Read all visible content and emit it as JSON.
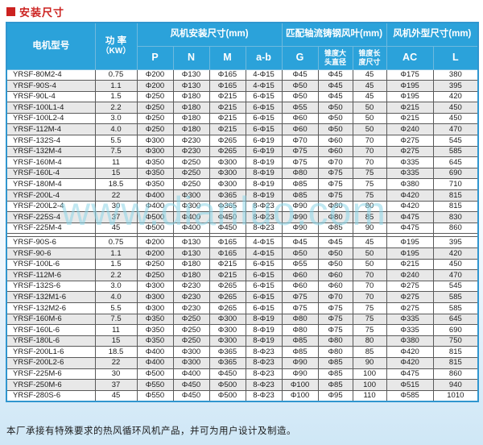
{
  "page": {
    "title": "安装尺寸",
    "watermark": "www.dianluo.com",
    "footer_note": "本厂承接有特殊要求的热风循环风机产品，并可为用户设计及制造。"
  },
  "colors": {
    "title_red": "#cc2220",
    "header_blue": "#2ba2da",
    "row_alt_gray": "#e8e8e8",
    "table_border_blue": "#3096cf",
    "watermark_cyan": "#8ed7e8",
    "page_bottom_blue": "#cfe7f6"
  },
  "table": {
    "header": {
      "motor_model": "电机型号",
      "power_l1": "功 率",
      "power_l2": "（KW）",
      "group_install": "风机安装尺寸(mm)",
      "group_blade": "匹配轴流铸钢风叶(mm)",
      "group_outline": "风机外型尺寸(mm)",
      "sub_p": "P",
      "sub_n": "N",
      "sub_m": "M",
      "sub_ab": "a-b",
      "sub_g": "G",
      "taper_diameter_l1": "锥度大",
      "taper_diameter_l2": "头直径",
      "taper_length_l1": "锥度长",
      "taper_length_l2": "度尺寸",
      "sub_ac": "AC",
      "sub_l": "L"
    },
    "sections": [
      {
        "rows": [
          [
            "YRSF-80M2-4",
            "0.75",
            "Φ200",
            "Φ130",
            "Φ165",
            "4-Φ15",
            "Φ45",
            "Φ45",
            "45",
            "Φ175",
            "380"
          ],
          [
            "YRSF-90S-4",
            "1.1",
            "Φ200",
            "Φ130",
            "Φ165",
            "4-Φ15",
            "Φ50",
            "Φ45",
            "45",
            "Φ195",
            "395"
          ],
          [
            "YRSF-90L-4",
            "1.5",
            "Φ250",
            "Φ180",
            "Φ215",
            "6-Φ15",
            "Φ50",
            "Φ45",
            "45",
            "Φ195",
            "420"
          ],
          [
            "YRSF-100L1-4",
            "2.2",
            "Φ250",
            "Φ180",
            "Φ215",
            "6-Φ15",
            "Φ55",
            "Φ50",
            "50",
            "Φ215",
            "450"
          ],
          [
            "YRSF-100L2-4",
            "3.0",
            "Φ250",
            "Φ180",
            "Φ215",
            "6-Φ15",
            "Φ60",
            "Φ50",
            "50",
            "Φ215",
            "450"
          ],
          [
            "YRSF-112M-4",
            "4.0",
            "Φ250",
            "Φ180",
            "Φ215",
            "6-Φ15",
            "Φ60",
            "Φ50",
            "50",
            "Φ240",
            "470"
          ],
          [
            "YRSF-132S-4",
            "5.5",
            "Φ300",
            "Φ230",
            "Φ265",
            "6-Φ19",
            "Φ70",
            "Φ60",
            "70",
            "Φ275",
            "545"
          ],
          [
            "YRSF-132M-4",
            "7.5",
            "Φ300",
            "Φ230",
            "Φ265",
            "6-Φ19",
            "Φ75",
            "Φ60",
            "70",
            "Φ275",
            "585"
          ],
          [
            "YRSF-160M-4",
            "11",
            "Φ350",
            "Φ250",
            "Φ300",
            "8-Φ19",
            "Φ75",
            "Φ70",
            "70",
            "Φ335",
            "645"
          ],
          [
            "YRSF-160L-4",
            "15",
            "Φ350",
            "Φ250",
            "Φ300",
            "8-Φ19",
            "Φ80",
            "Φ75",
            "75",
            "Φ335",
            "690"
          ],
          [
            "YRSF-180M-4",
            "18.5",
            "Φ350",
            "Φ250",
            "Φ300",
            "8-Φ19",
            "Φ85",
            "Φ75",
            "75",
            "Φ380",
            "710"
          ],
          [
            "YRSF-200L-4",
            "22",
            "Φ400",
            "Φ300",
            "Φ365",
            "8-Φ19",
            "Φ85",
            "Φ75",
            "75",
            "Φ420",
            "815"
          ],
          [
            "YRSF-200L2-4",
            "30",
            "Φ400",
            "Φ300",
            "Φ365",
            "8-Φ23",
            "Φ90",
            "Φ80",
            "80",
            "Φ420",
            "815"
          ],
          [
            "YRSF-225S-4",
            "37",
            "Φ500",
            "Φ400",
            "Φ450",
            "8-Φ23",
            "Φ90",
            "Φ80",
            "85",
            "Φ475",
            "830"
          ],
          [
            "YRSF-225M-4",
            "45",
            "Φ500",
            "Φ400",
            "Φ450",
            "8-Φ23",
            "Φ90",
            "Φ85",
            "90",
            "Φ475",
            "860"
          ]
        ]
      },
      {
        "rows": [
          [
            "YRSF-90S-6",
            "0.75",
            "Φ200",
            "Φ130",
            "Φ165",
            "4-Φ15",
            "Φ45",
            "Φ45",
            "45",
            "Φ195",
            "395"
          ],
          [
            "YRSF-90-6",
            "1.1",
            "Φ200",
            "Φ130",
            "Φ165",
            "4-Φ15",
            "Φ50",
            "Φ50",
            "50",
            "Φ195",
            "420"
          ],
          [
            "YRSF-100L-6",
            "1.5",
            "Φ250",
            "Φ180",
            "Φ215",
            "6-Φ15",
            "Φ55",
            "Φ50",
            "50",
            "Φ215",
            "450"
          ],
          [
            "YRSF-112M-6",
            "2.2",
            "Φ250",
            "Φ180",
            "Φ215",
            "6-Φ15",
            "Φ60",
            "Φ60",
            "70",
            "Φ240",
            "470"
          ],
          [
            "YRSF-132S-6",
            "3.0",
            "Φ300",
            "Φ230",
            "Φ265",
            "6-Φ15",
            "Φ60",
            "Φ60",
            "70",
            "Φ275",
            "545"
          ],
          [
            "YRSF-132M1-6",
            "4.0",
            "Φ300",
            "Φ230",
            "Φ265",
            "6-Φ15",
            "Φ75",
            "Φ70",
            "70",
            "Φ275",
            "585"
          ],
          [
            "YRSF-132M2-6",
            "5.5",
            "Φ300",
            "Φ230",
            "Φ265",
            "6-Φ15",
            "Φ75",
            "Φ75",
            "75",
            "Φ275",
            "585"
          ],
          [
            "YRSF-160M-6",
            "7.5",
            "Φ350",
            "Φ250",
            "Φ300",
            "8-Φ19",
            "Φ80",
            "Φ75",
            "75",
            "Φ335",
            "645"
          ],
          [
            "YRSF-160L-6",
            "11",
            "Φ350",
            "Φ250",
            "Φ300",
            "8-Φ19",
            "Φ80",
            "Φ75",
            "75",
            "Φ335",
            "690"
          ],
          [
            "YRSF-180L-6",
            "15",
            "Φ350",
            "Φ250",
            "Φ300",
            "8-Φ19",
            "Φ85",
            "Φ80",
            "80",
            "Φ380",
            "750"
          ],
          [
            "YRSF-200L1-6",
            "18.5",
            "Φ400",
            "Φ300",
            "Φ365",
            "8-Φ23",
            "Φ85",
            "Φ80",
            "85",
            "Φ420",
            "815"
          ],
          [
            "YRSF-200L2-6",
            "22",
            "Φ400",
            "Φ300",
            "Φ365",
            "8-Φ23",
            "Φ90",
            "Φ85",
            "90",
            "Φ420",
            "815"
          ],
          [
            "YRSF-225M-6",
            "30",
            "Φ500",
            "Φ400",
            "Φ450",
            "8-Φ23",
            "Φ90",
            "Φ85",
            "100",
            "Φ475",
            "860"
          ],
          [
            "YRSF-250M-6",
            "37",
            "Φ550",
            "Φ450",
            "Φ500",
            "8-Φ23",
            "Φ100",
            "Φ85",
            "100",
            "Φ515",
            "940"
          ],
          [
            "YRSF-280S-6",
            "45",
            "Φ550",
            "Φ450",
            "Φ500",
            "8-Φ23",
            "Φ100",
            "Φ95",
            "110",
            "Φ585",
            "1010"
          ]
        ]
      }
    ]
  }
}
